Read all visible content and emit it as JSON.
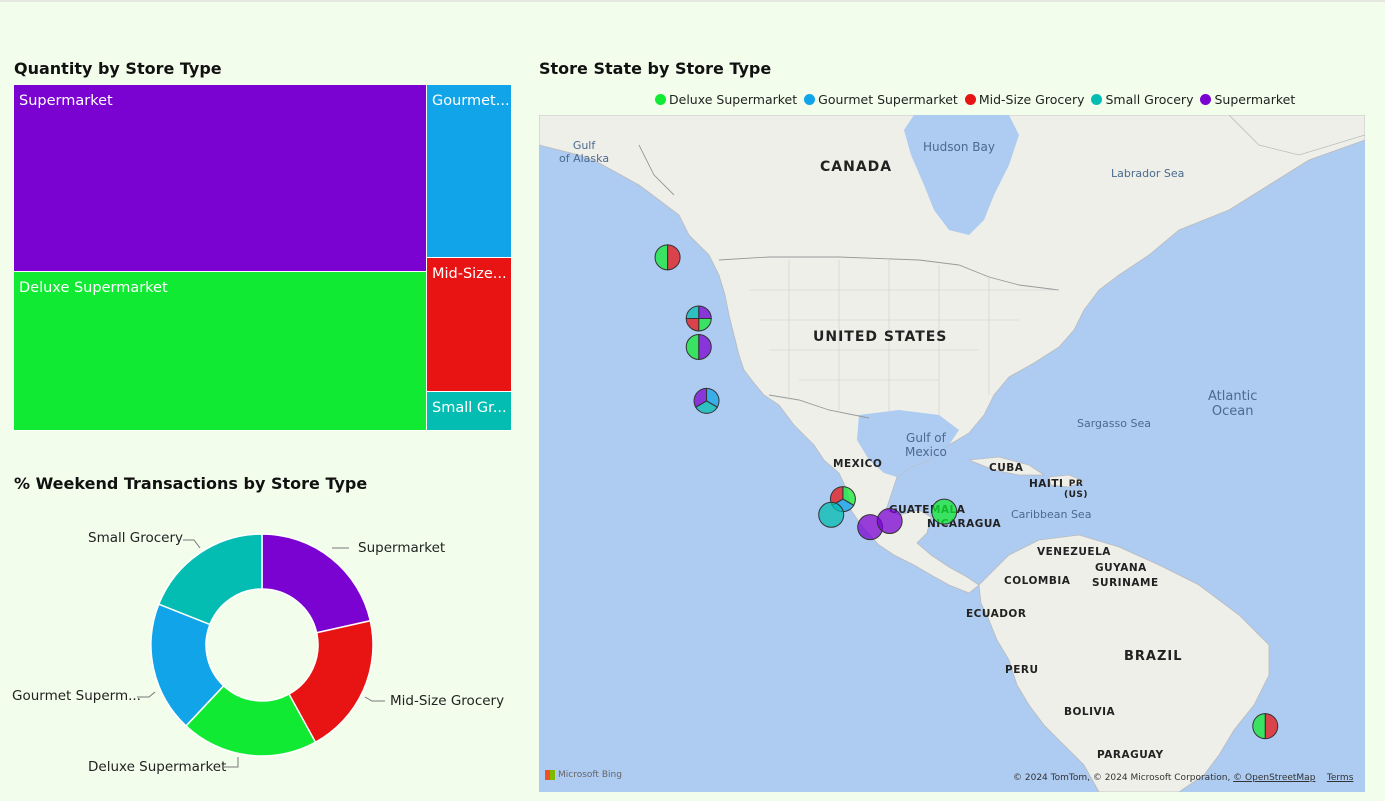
{
  "colors": {
    "deluxe_supermarket": "#11ea33",
    "gourmet_supermarket": "#11a4e8",
    "mid_size_grocery": "#e81414",
    "small_grocery": "#04bdb2",
    "supermarket": "#7b03d1",
    "background": "#f3fdec",
    "map_water": "#aecbf1",
    "map_land": "#efefea"
  },
  "treemap": {
    "title": "Quantity by Store Type",
    "tiles": [
      {
        "label": "Supermarket",
        "color_key": "supermarket"
      },
      {
        "label": "Deluxe Supermarket",
        "color_key": "deluxe_supermarket"
      },
      {
        "label": "Gourmet...",
        "color_key": "gourmet_supermarket"
      },
      {
        "label": "Mid-Size...",
        "color_key": "mid_size_grocery"
      },
      {
        "label": "Small Gr...",
        "color_key": "small_grocery"
      }
    ]
  },
  "donut": {
    "title": "% Weekend Transactions by Store Type",
    "labels": {
      "supermarket": "Supermarket",
      "mid_size_grocery": "Mid-Size Grocery",
      "deluxe_supermarket": "Deluxe Supermarket",
      "gourmet_supermarket": "Gourmet Superm...",
      "small_grocery": "Small Grocery"
    }
  },
  "map": {
    "title": "Store State by Store Type",
    "legend": [
      {
        "label": "Deluxe Supermarket",
        "color_key": "deluxe_supermarket"
      },
      {
        "label": "Gourmet Supermarket",
        "color_key": "gourmet_supermarket"
      },
      {
        "label": "Mid-Size Grocery",
        "color_key": "mid_size_grocery"
      },
      {
        "label": "Small Grocery",
        "color_key": "small_grocery"
      },
      {
        "label": "Supermarket",
        "color_key": "supermarket"
      }
    ],
    "place_labels": {
      "gulf_alaska": "Gulf\nof Alaska",
      "canada": "CANADA",
      "hudson_bay": "Hudson Bay",
      "labrador_sea": "Labrador Sea",
      "united_states": "UNITED STATES",
      "atlantic": "Atlantic\nOcean",
      "sargasso": "Sargasso Sea",
      "gulf_mexico": "Gulf of\nMexico",
      "mexico": "MEXICO",
      "cuba": "CUBA",
      "haiti": "HAITI",
      "pr": "PR\n(US)",
      "guatemala": "GUATEMALA",
      "nicaragua": "NICARAGUA",
      "caribbean": "Caribbean Sea",
      "venezuela": "VENEZUELA",
      "guyana": "GUYANA",
      "suriname": "SURINAME",
      "colombia": "COLOMBIA",
      "ecuador": "ECUADOR",
      "peru": "PERU",
      "brazil": "BRAZIL",
      "bolivia": "BOLIVIA",
      "paraguay": "PARAGUAY"
    },
    "attribution": {
      "bing": "Microsoft Bing",
      "text": "© 2024 TomTom, © 2024 Microsoft Corporation, ",
      "osm": "© OpenStreetMap",
      "terms": "Terms"
    }
  },
  "chart_data": [
    {
      "type": "treemap",
      "title": "Quantity by Store Type",
      "categories": [
        "Supermarket",
        "Deluxe Supermarket",
        "Gourmet Supermarket",
        "Mid-Size Grocery",
        "Small Grocery"
      ],
      "values": [
        34.3,
        36.8,
        8.2,
        9.2,
        2.6
      ]
    },
    {
      "type": "pie",
      "donut": true,
      "title": "% Weekend Transactions by Store Type",
      "categories": [
        "Supermarket",
        "Mid-Size Grocery",
        "Deluxe Supermarket",
        "Gourmet Supermarket",
        "Small Grocery"
      ],
      "values": [
        21.5,
        20.5,
        20.0,
        19.0,
        19.0
      ]
    },
    {
      "type": "scatter",
      "subtype": "map-pies",
      "title": "Store State by Store Type",
      "points": [
        {
          "lat": 54.0,
          "lon": -124.5,
          "types": [
            "mid_size_grocery",
            "deluxe_supermarket"
          ]
        },
        {
          "lat": 47.4,
          "lon": -120.5,
          "types": [
            "supermarket",
            "deluxe_supermarket",
            "mid_size_grocery",
            "small_grocery"
          ]
        },
        {
          "lat": 44.0,
          "lon": -120.5,
          "types": [
            "supermarket",
            "deluxe_supermarket"
          ]
        },
        {
          "lat": 37.0,
          "lon": -119.5,
          "types": [
            "gourmet_supermarket",
            "small_grocery",
            "supermarket"
          ]
        },
        {
          "lat": 22.5,
          "lon": -102.0,
          "types": [
            "deluxe_supermarket",
            "gourmet_supermarket",
            "mid_size_grocery"
          ]
        },
        {
          "lat": 20.0,
          "lon": -103.5,
          "types": [
            "small_grocery"
          ]
        },
        {
          "lat": 18.0,
          "lon": -98.5,
          "types": [
            "supermarket"
          ]
        },
        {
          "lat": 19.0,
          "lon": -96.0,
          "types": [
            "supermarket"
          ]
        },
        {
          "lat": 20.5,
          "lon": -89.0,
          "types": [
            "deluxe_supermarket"
          ]
        },
        {
          "lat": -15.5,
          "lon": -47.8,
          "types": [
            "mid_size_grocery",
            "deluxe_supermarket"
          ]
        }
      ]
    }
  ]
}
